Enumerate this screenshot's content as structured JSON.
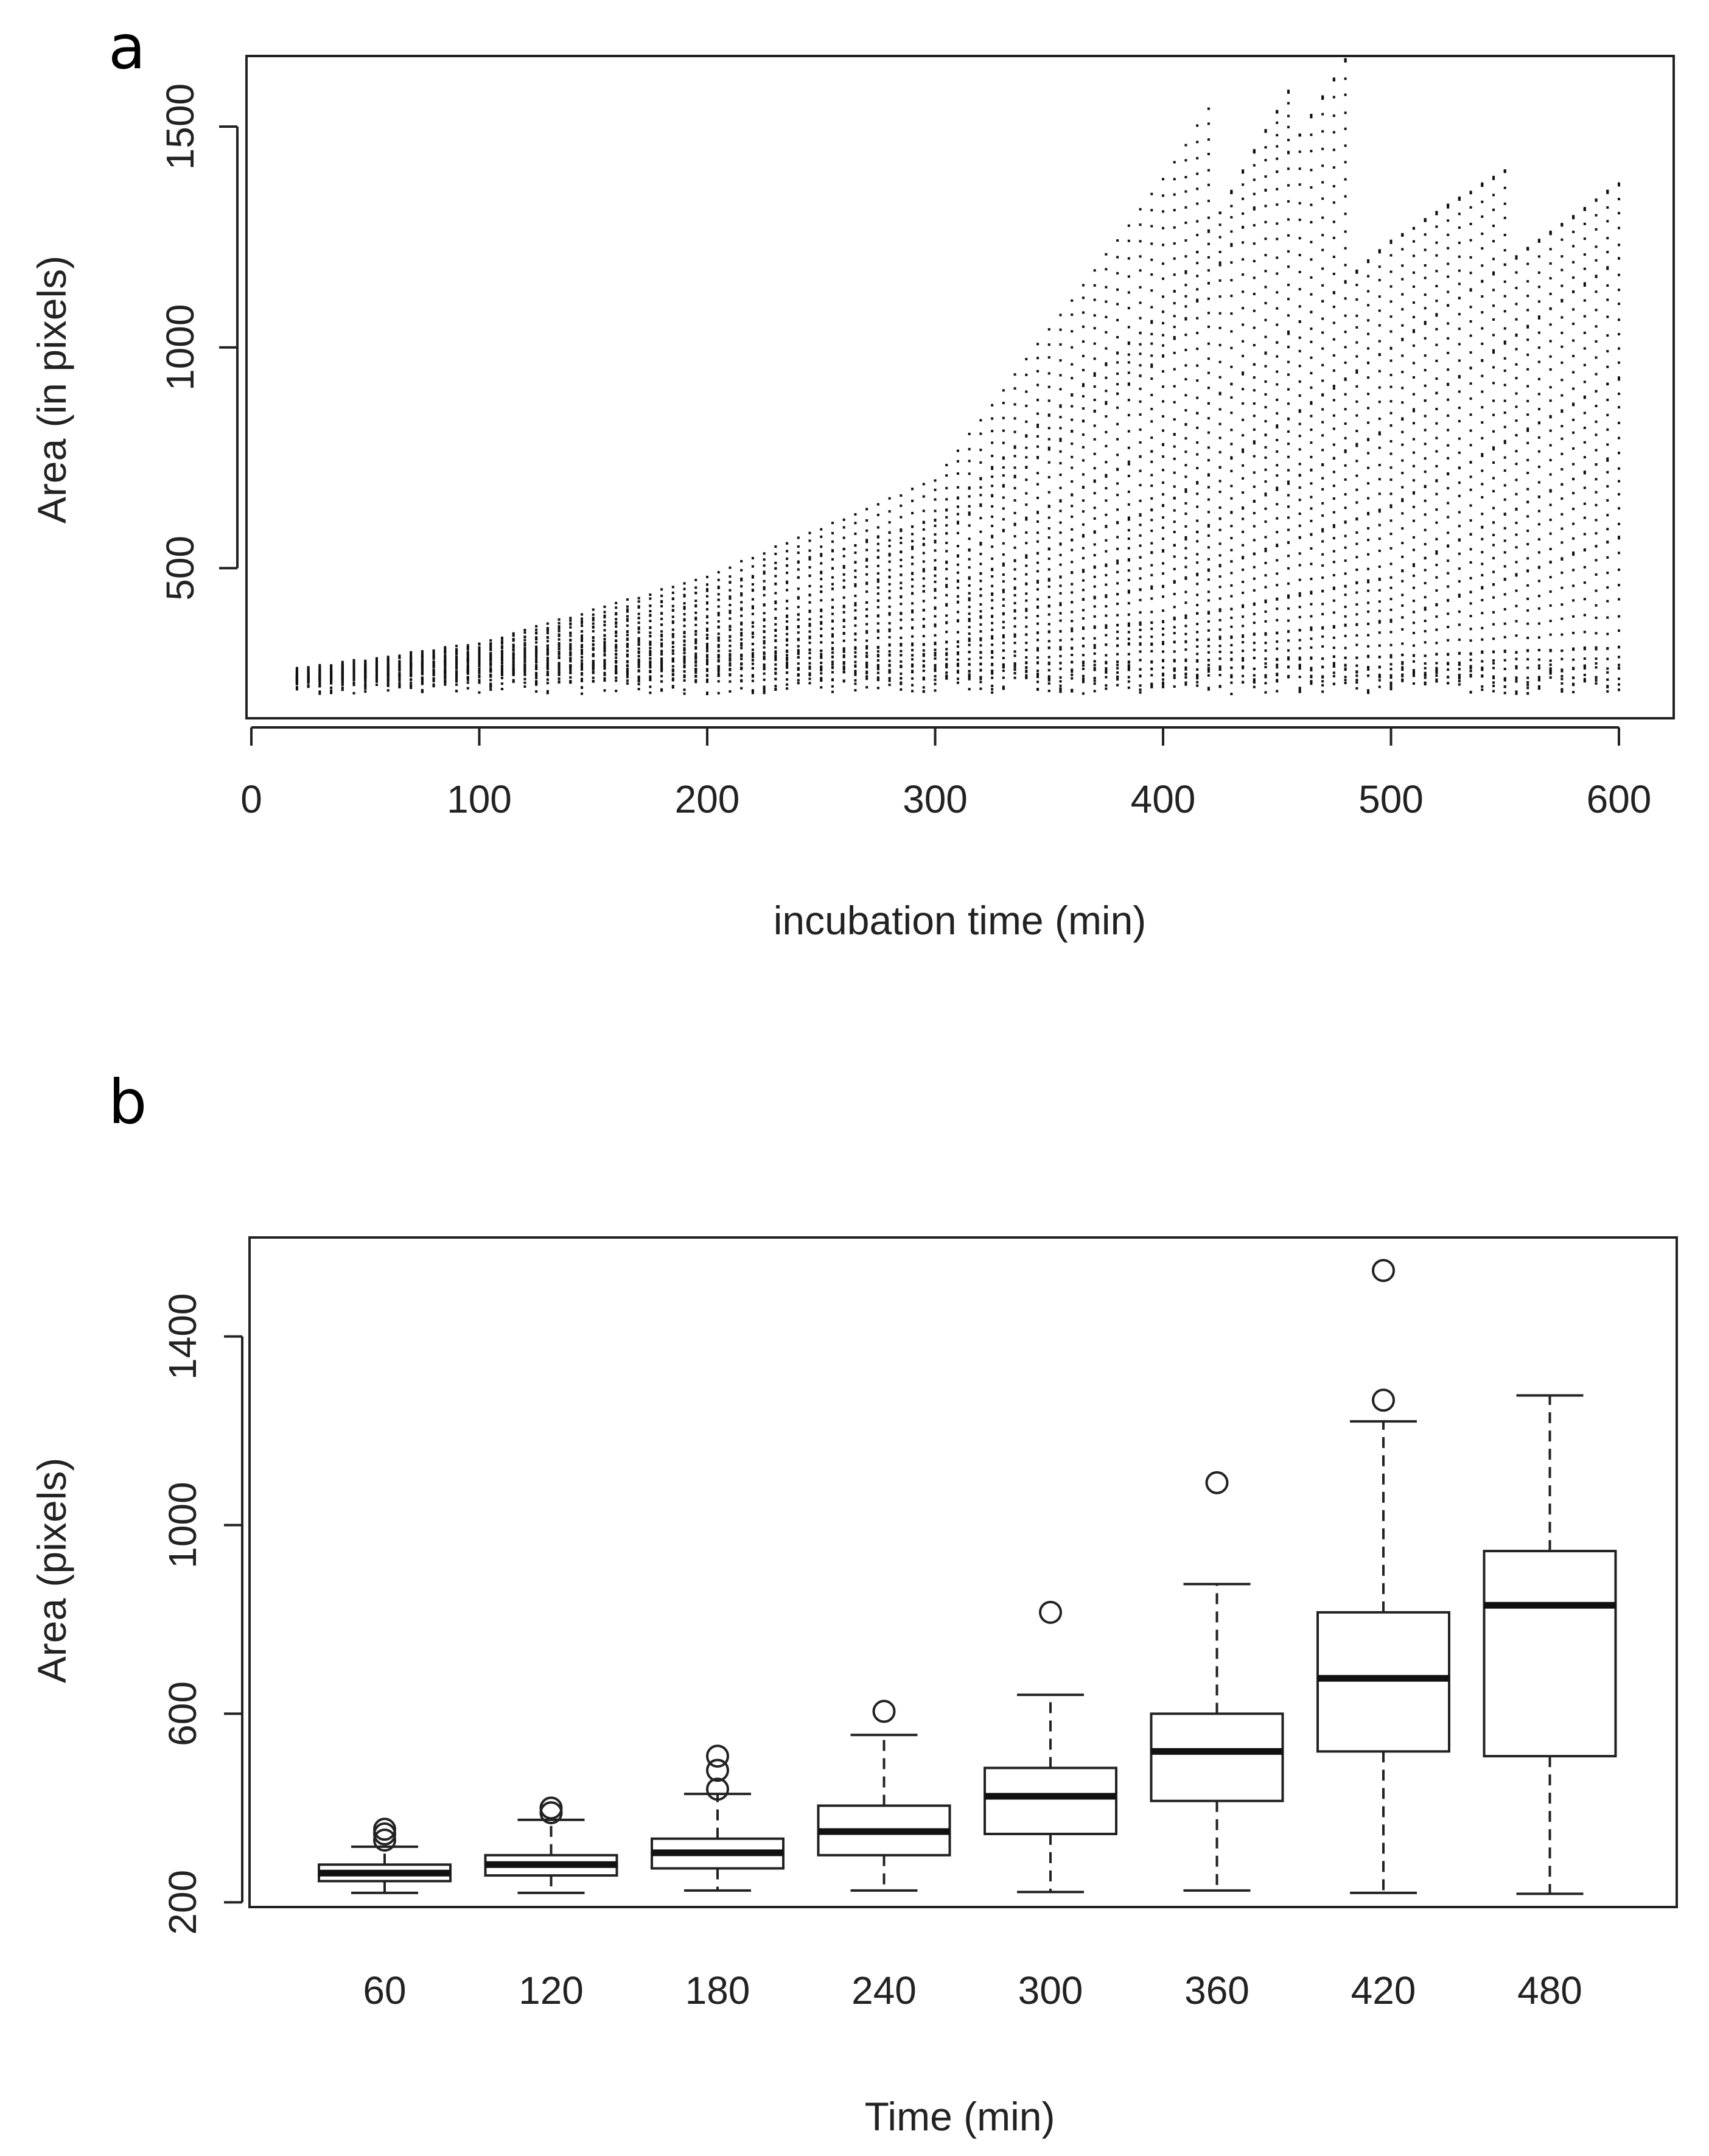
{
  "panels": {
    "a": {
      "label": "a"
    },
    "b": {
      "label": "b"
    }
  },
  "chart_data": [
    {
      "id": "a",
      "type": "scatter",
      "xlabel": "incubation time (min)",
      "ylabel": "Area (in pixels)",
      "xlim": [
        0,
        600
      ],
      "ylim": [
        160,
        1660
      ],
      "xticks": [
        0,
        100,
        200,
        300,
        400,
        500,
        600
      ],
      "yticks": [
        500,
        1000,
        1500
      ],
      "grid": false,
      "legend": "none",
      "point_marker": "small dots",
      "description_of_trajectories": [
        {
          "x": [
            20,
            100,
            200,
            300,
            400,
            420
          ],
          "y": [
            270,
            330,
            480,
            700,
            1380,
            1540
          ]
        },
        {
          "x": [
            20,
            100,
            200,
            300,
            400,
            455
          ],
          "y": [
            265,
            320,
            450,
            610,
            1080,
            1580
          ]
        },
        {
          "x": [
            20,
            100,
            200,
            300,
            400,
            480
          ],
          "y": [
            260,
            310,
            420,
            560,
            980,
            1650
          ]
        },
        {
          "x": [
            20,
            100,
            200,
            300,
            400,
            500,
            550
          ],
          "y": [
            255,
            300,
            390,
            500,
            780,
            1240,
            1400
          ]
        },
        {
          "x": [
            20,
            100,
            200,
            300,
            400,
            500,
            600
          ],
          "y": [
            255,
            295,
            360,
            450,
            640,
            1000,
            1370
          ]
        },
        {
          "x": [
            20,
            100,
            200,
            300,
            400,
            500,
            600
          ],
          "y": [
            250,
            290,
            340,
            410,
            540,
            820,
            1200
          ]
        },
        {
          "x": [
            20,
            100,
            200,
            300,
            400,
            500,
            600
          ],
          "y": [
            250,
            280,
            320,
            370,
            460,
            640,
            930
          ]
        },
        {
          "x": [
            20,
            100,
            200,
            300,
            400,
            500,
            600
          ],
          "y": [
            245,
            270,
            300,
            330,
            380,
            480,
            760
          ]
        },
        {
          "x": [
            20,
            100,
            200,
            300,
            400,
            500,
            600
          ],
          "y": [
            245,
            265,
            290,
            305,
            330,
            380,
            570
          ]
        },
        {
          "x": [
            20,
            100,
            200,
            300,
            400,
            500,
            600
          ],
          "y": [
            240,
            255,
            270,
            280,
            290,
            300,
            320
          ]
        },
        {
          "x": [
            20,
            100,
            200,
            300,
            400,
            500,
            600
          ],
          "y": [
            230,
            240,
            245,
            250,
            255,
            255,
            250
          ]
        }
      ]
    },
    {
      "id": "b",
      "type": "box",
      "xlabel": "Time (min)",
      "ylabel": "Area (pixels)",
      "ylim": [
        190,
        1610
      ],
      "yticks": [
        200,
        600,
        1000,
        1400
      ],
      "categories": [
        "60",
        "120",
        "180",
        "240",
        "300",
        "360",
        "420",
        "480"
      ],
      "boxes": [
        {
          "whisker_low": 220,
          "q1": 245,
          "median": 262,
          "q3": 280,
          "whisker_high": 318,
          "outliers": [
            332,
            345,
            355
          ]
        },
        {
          "whisker_low": 220,
          "q1": 257,
          "median": 280,
          "q3": 300,
          "whisker_high": 375,
          "outliers": [
            390,
            400
          ]
        },
        {
          "whisker_low": 225,
          "q1": 272,
          "median": 305,
          "q3": 335,
          "whisker_high": 430,
          "outliers": [
            440,
            480,
            510
          ]
        },
        {
          "whisker_low": 225,
          "q1": 300,
          "median": 350,
          "q3": 405,
          "whisker_high": 555,
          "outliers": [
            605
          ]
        },
        {
          "whisker_low": 222,
          "q1": 345,
          "median": 425,
          "q3": 485,
          "whisker_high": 640,
          "outliers": [
            815
          ]
        },
        {
          "whisker_low": 225,
          "q1": 415,
          "median": 520,
          "q3": 600,
          "whisker_high": 875,
          "outliers": [
            1090
          ]
        },
        {
          "whisker_low": 220,
          "q1": 520,
          "median": 675,
          "q3": 815,
          "whisker_high": 1220,
          "outliers": [
            1265,
            1540
          ]
        },
        {
          "whisker_low": 218,
          "q1": 510,
          "median": 830,
          "q3": 945,
          "whisker_high": 1275,
          "outliers": []
        }
      ],
      "grid": false,
      "legend": "none"
    }
  ]
}
